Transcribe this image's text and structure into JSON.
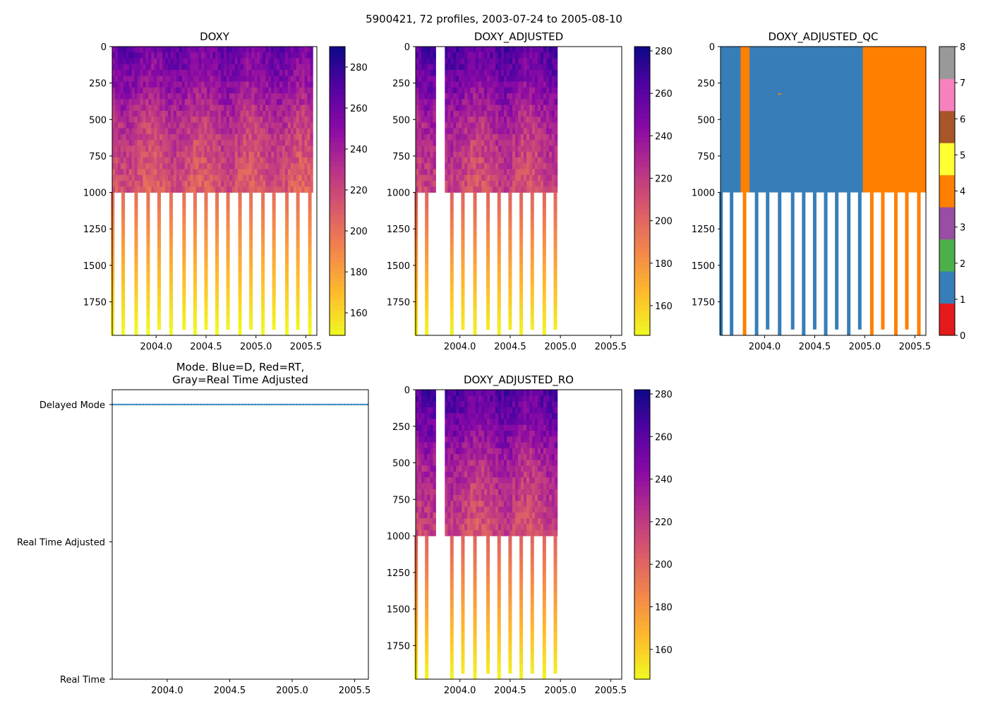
{
  "figure": {
    "suptitle": "5900421, 72 profiles, 2003-07-24 to 2005-08-10"
  },
  "colors": {
    "qc": [
      "#e41a1c",
      "#377eb8",
      "#4daf4a",
      "#984ea3",
      "#ff7f00",
      "#ffff33",
      "#a65628",
      "#f781bf",
      "#999999"
    ],
    "mode_line": "#1f77b4"
  },
  "chart_data": [
    {
      "id": "doxy",
      "type": "heatmap",
      "title": "DOXY",
      "xlabel": "",
      "ylabel": "",
      "xlim": [
        2003.56,
        2005.61
      ],
      "ylim": [
        1980,
        0
      ],
      "xticks": [
        "2004.0",
        "2004.5",
        "2005.0",
        "2005.5"
      ],
      "yticks": [
        "0",
        "250",
        "500",
        "750",
        "1000",
        "1250",
        "1500",
        "1750"
      ],
      "colormap": "plasma_r",
      "clim": [
        149,
        290
      ],
      "colorbar_ticks": [
        "160",
        "180",
        "200",
        "220",
        "240",
        "260",
        "280"
      ],
      "data_extent_x": [
        2003.56,
        2005.57
      ],
      "deep_profiles": [
        {
          "x": 2003.565,
          "bottom": 1980
        },
        {
          "x": 2003.67,
          "bottom": 1980
        },
        {
          "x": 2003.8,
          "bottom": 1980
        },
        {
          "x": 2003.92,
          "bottom": 1980
        },
        {
          "x": 2004.03,
          "bottom": 1940
        },
        {
          "x": 2004.15,
          "bottom": 1980
        },
        {
          "x": 2004.28,
          "bottom": 1940
        },
        {
          "x": 2004.39,
          "bottom": 1980
        },
        {
          "x": 2004.5,
          "bottom": 1940
        },
        {
          "x": 2004.61,
          "bottom": 1980
        },
        {
          "x": 2004.72,
          "bottom": 1940
        },
        {
          "x": 2004.84,
          "bottom": 1980
        },
        {
          "x": 2004.95,
          "bottom": 1940
        },
        {
          "x": 2005.07,
          "bottom": 1980
        },
        {
          "x": 2005.18,
          "bottom": 1940
        },
        {
          "x": 2005.31,
          "bottom": 1980
        },
        {
          "x": 2005.42,
          "bottom": 1940
        },
        {
          "x": 2005.54,
          "bottom": 1980
        }
      ]
    },
    {
      "id": "doxy_adjusted",
      "type": "heatmap",
      "title": "DOXY_ADJUSTED",
      "xlabel": "",
      "ylabel": "",
      "xlim": [
        2003.56,
        2005.61
      ],
      "ylim": [
        1980,
        0
      ],
      "xticks": [
        "2004.0",
        "2004.5",
        "2005.0",
        "2005.5"
      ],
      "yticks": [
        "0",
        "250",
        "500",
        "750",
        "1000",
        "1250",
        "1500",
        "1750"
      ],
      "colormap": "plasma_r",
      "clim": [
        146,
        282
      ],
      "colorbar_ticks": [
        "160",
        "180",
        "200",
        "220",
        "240",
        "260",
        "280"
      ],
      "data_segments_x": [
        [
          2003.56,
          2003.76
        ],
        [
          2003.85,
          2004.97
        ]
      ],
      "deep_profiles": [
        {
          "x": 2003.565,
          "bottom": 1980
        },
        {
          "x": 2003.67,
          "bottom": 1980
        },
        {
          "x": 2003.92,
          "bottom": 1980
        },
        {
          "x": 2004.03,
          "bottom": 1940
        },
        {
          "x": 2004.15,
          "bottom": 1980
        },
        {
          "x": 2004.28,
          "bottom": 1940
        },
        {
          "x": 2004.39,
          "bottom": 1980
        },
        {
          "x": 2004.5,
          "bottom": 1940
        },
        {
          "x": 2004.61,
          "bottom": 1980
        },
        {
          "x": 2004.72,
          "bottom": 1940
        },
        {
          "x": 2004.84,
          "bottom": 1980
        },
        {
          "x": 2004.95,
          "bottom": 1940
        }
      ]
    },
    {
      "id": "doxy_adjusted_qc",
      "type": "heatmap",
      "title": "DOXY_ADJUSTED_QC",
      "xlabel": "",
      "ylabel": "",
      "xlim": [
        2003.56,
        2005.61
      ],
      "ylim": [
        1980,
        0
      ],
      "xticks": [
        "2004.0",
        "2004.5",
        "2005.0",
        "2005.5"
      ],
      "yticks": [
        "0",
        "250",
        "500",
        "750",
        "1000",
        "1250",
        "1500",
        "1750"
      ],
      "colorbar_ticks": [
        "0",
        "1",
        "2",
        "3",
        "4",
        "5",
        "6",
        "7",
        "8"
      ],
      "blocks": [
        {
          "x0": 2003.56,
          "x1": 2003.76,
          "qc": 1
        },
        {
          "x0": 2003.76,
          "x1": 2003.85,
          "qc": 4
        },
        {
          "x0": 2003.85,
          "x1": 2004.98,
          "qc": 1
        },
        {
          "x0": 2004.98,
          "x1": 2005.61,
          "qc": 4
        }
      ],
      "outlier": {
        "x": 2004.15,
        "depth": 325,
        "qc": 4
      },
      "deep_profiles": [
        {
          "x": 2003.565,
          "bottom": 1980,
          "qc": 1
        },
        {
          "x": 2003.67,
          "bottom": 1980,
          "qc": 1
        },
        {
          "x": 2003.8,
          "bottom": 1980,
          "qc": 4
        },
        {
          "x": 2003.92,
          "bottom": 1980,
          "qc": 1
        },
        {
          "x": 2004.03,
          "bottom": 1940,
          "qc": 1
        },
        {
          "x": 2004.15,
          "bottom": 1980,
          "qc": 1
        },
        {
          "x": 2004.28,
          "bottom": 1940,
          "qc": 1
        },
        {
          "x": 2004.39,
          "bottom": 1980,
          "qc": 1
        },
        {
          "x": 2004.5,
          "bottom": 1940,
          "qc": 1
        },
        {
          "x": 2004.61,
          "bottom": 1980,
          "qc": 1
        },
        {
          "x": 2004.72,
          "bottom": 1940,
          "qc": 1
        },
        {
          "x": 2004.84,
          "bottom": 1980,
          "qc": 1
        },
        {
          "x": 2004.95,
          "bottom": 1940,
          "qc": 1
        },
        {
          "x": 2005.07,
          "bottom": 1980,
          "qc": 4
        },
        {
          "x": 2005.18,
          "bottom": 1940,
          "qc": 4
        },
        {
          "x": 2005.31,
          "bottom": 1980,
          "qc": 4
        },
        {
          "x": 2005.42,
          "bottom": 1940,
          "qc": 4
        },
        {
          "x": 2005.54,
          "bottom": 1980,
          "qc": 4
        }
      ]
    },
    {
      "id": "mode",
      "type": "scatter",
      "title": "Mode. Blue=D, Red=RT,",
      "title2": "Gray=Real Time Adjusted",
      "xlabel": "",
      "ylabel": "",
      "xlim": [
        2003.56,
        2005.61
      ],
      "ylim": [
        0,
        2
      ],
      "xticks": [
        "2004.0",
        "2004.5",
        "2005.0",
        "2005.5"
      ],
      "ytick_labels": [
        "Real Time",
        "Real Time Adjusted",
        "Delayed Mode"
      ],
      "series": [
        {
          "name": "Delayed Mode",
          "x_range": [
            2003.56,
            2005.61
          ],
          "y": 2,
          "count": 72
        }
      ]
    },
    {
      "id": "doxy_adjusted_ro",
      "type": "heatmap",
      "title": "DOXY_ADJUSTED_RO",
      "xlabel": "",
      "ylabel": "",
      "xlim": [
        2003.56,
        2005.61
      ],
      "ylim": [
        1980,
        0
      ],
      "xticks": [
        "2004.0",
        "2004.5",
        "2005.0",
        "2005.5"
      ],
      "yticks": [
        "0",
        "250",
        "500",
        "750",
        "1000",
        "1250",
        "1500",
        "1750"
      ],
      "colormap": "plasma_r",
      "clim": [
        146,
        282
      ],
      "colorbar_ticks": [
        "160",
        "180",
        "200",
        "220",
        "240",
        "260",
        "280"
      ],
      "data_segments_x": [
        [
          2003.56,
          2003.76
        ],
        [
          2003.85,
          2004.97
        ]
      ],
      "deep_profiles": [
        {
          "x": 2003.565,
          "bottom": 1980
        },
        {
          "x": 2003.67,
          "bottom": 1980
        },
        {
          "x": 2003.92,
          "bottom": 1980
        },
        {
          "x": 2004.03,
          "bottom": 1940
        },
        {
          "x": 2004.15,
          "bottom": 1980
        },
        {
          "x": 2004.28,
          "bottom": 1940
        },
        {
          "x": 2004.39,
          "bottom": 1980
        },
        {
          "x": 2004.5,
          "bottom": 1940
        },
        {
          "x": 2004.61,
          "bottom": 1980
        },
        {
          "x": 2004.72,
          "bottom": 1940
        },
        {
          "x": 2004.84,
          "bottom": 1980
        },
        {
          "x": 2004.95,
          "bottom": 1940
        }
      ]
    }
  ]
}
